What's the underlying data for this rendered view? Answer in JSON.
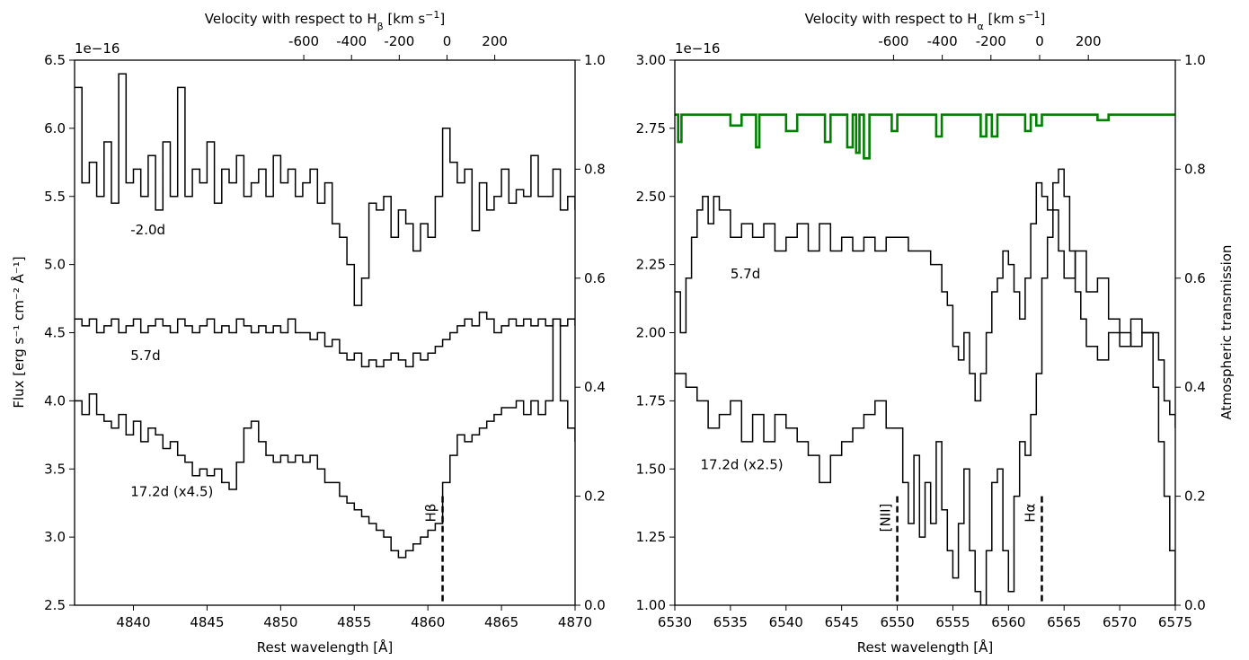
{
  "chart_data": [
    {
      "type": "line",
      "panel": "left",
      "xlabel": "Rest wavelength [Å]",
      "ylabel": "Flux [erg s⁻¹ cm⁻² Å⁻¹]",
      "y_offset_text": "1e−16",
      "xlim": [
        4836,
        4870
      ],
      "ylim": [
        2.5,
        6.5
      ],
      "xticks": [
        4840,
        4845,
        4850,
        4855,
        4860,
        4865,
        4870
      ],
      "xtick_labels": [
        "4840",
        "4845",
        "4850",
        "4855",
        "4860",
        "4865",
        "4870"
      ],
      "yticks": [
        2.5,
        3.0,
        3.5,
        4.0,
        4.5,
        5.0,
        5.5,
        6.0,
        6.5
      ],
      "ytick_labels": [
        "2.5",
        "3.0",
        "3.5",
        "4.0",
        "4.5",
        "5.0",
        "5.5",
        "6.0",
        "6.5"
      ],
      "right_yticks": [
        0.0,
        0.2,
        0.4,
        0.6,
        0.8,
        1.0
      ],
      "right_ytick_labels": [
        "0.0",
        "0.2",
        "0.4",
        "0.6",
        "0.8",
        "1.0"
      ],
      "top_axis_label": "Velocity with respect to H_β [km s⁻¹]",
      "top_axis_label_parts": {
        "pre": "Velocity with respect to H",
        "sub": "β",
        "post": " [km s",
        "sup": "−1",
        "end": "]"
      },
      "top_ticks": [
        -600,
        -400,
        -200,
        0,
        200
      ],
      "top_tick_labels": [
        "-600",
        "-400",
        "-200",
        "0",
        "200"
      ],
      "rest_wavelength": 4861.3,
      "series": [
        {
          "label": "-2.0d",
          "label_pos": [
            4839.8,
            5.22
          ],
          "x": [
            4836.0,
            4836.5,
            4837.0,
            4837.5,
            4838.0,
            4838.5,
            4839.0,
            4839.5,
            4840.0,
            4840.5,
            4841.0,
            4841.5,
            4842.0,
            4842.5,
            4843.0,
            4843.5,
            4844.0,
            4844.5,
            4845.0,
            4845.5,
            4846.0,
            4846.5,
            4847.0,
            4847.5,
            4848.0,
            4848.5,
            4849.0,
            4849.5,
            4850.0,
            4850.5,
            4851.0,
            4851.5,
            4852.0,
            4852.5,
            4853.0,
            4853.5,
            4854.0,
            4854.5,
            4855.0,
            4855.5,
            4856.0,
            4856.5,
            4857.0,
            4857.5,
            4858.0,
            4858.5,
            4859.0,
            4859.5,
            4860.0,
            4860.5,
            4861.0,
            4861.5,
            4862.0,
            4862.5,
            4863.0,
            4863.5,
            4864.0,
            4864.5,
            4865.0,
            4865.5,
            4866.0,
            4866.5,
            4867.0,
            4867.5,
            4868.0,
            4868.5,
            4869.0,
            4869.5,
            4870.0
          ],
          "y": [
            6.3,
            5.6,
            5.75,
            5.5,
            5.9,
            5.45,
            6.4,
            5.6,
            5.7,
            5.5,
            5.8,
            5.4,
            5.9,
            5.5,
            6.3,
            5.5,
            5.7,
            5.6,
            5.9,
            5.45,
            5.7,
            5.6,
            5.8,
            5.5,
            5.6,
            5.7,
            5.5,
            5.8,
            5.6,
            5.7,
            5.5,
            5.6,
            5.7,
            5.45,
            5.6,
            5.3,
            5.2,
            5.0,
            4.7,
            4.9,
            5.45,
            5.4,
            5.5,
            5.2,
            5.4,
            5.3,
            5.1,
            5.3,
            5.2,
            5.5,
            6.0,
            5.75,
            5.6,
            5.7,
            5.25,
            5.6,
            5.4,
            5.5,
            5.7,
            5.45,
            5.55,
            5.5,
            5.8,
            5.5,
            5.5,
            5.7,
            5.4,
            5.5,
            5.4
          ]
        },
        {
          "label": "5.7d",
          "label_pos": [
            4839.8,
            4.3
          ],
          "x": [
            4836.0,
            4836.5,
            4837.0,
            4837.5,
            4838.0,
            4838.5,
            4839.0,
            4839.5,
            4840.0,
            4840.5,
            4841.0,
            4841.5,
            4842.0,
            4842.5,
            4843.0,
            4843.5,
            4844.0,
            4844.5,
            4845.0,
            4845.5,
            4846.0,
            4846.5,
            4847.0,
            4847.5,
            4848.0,
            4848.5,
            4849.0,
            4849.5,
            4850.0,
            4850.5,
            4851.0,
            4851.5,
            4852.0,
            4852.5,
            4853.0,
            4853.5,
            4854.0,
            4854.5,
            4855.0,
            4855.5,
            4856.0,
            4856.5,
            4857.0,
            4857.5,
            4858.0,
            4858.5,
            4859.0,
            4859.5,
            4860.0,
            4860.5,
            4861.0,
            4861.5,
            4862.0,
            4862.5,
            4863.0,
            4863.5,
            4864.0,
            4864.5,
            4865.0,
            4865.5,
            4866.0,
            4866.5,
            4867.0,
            4867.5,
            4868.0,
            4868.5,
            4869.0,
            4869.5,
            4870.0
          ],
          "y": [
            4.6,
            4.55,
            4.6,
            4.5,
            4.55,
            4.6,
            4.5,
            4.55,
            4.6,
            4.5,
            4.55,
            4.6,
            4.55,
            4.5,
            4.6,
            4.55,
            4.5,
            4.55,
            4.6,
            4.5,
            4.55,
            4.5,
            4.6,
            4.55,
            4.5,
            4.55,
            4.5,
            4.55,
            4.5,
            4.6,
            4.5,
            4.5,
            4.45,
            4.5,
            4.4,
            4.45,
            4.35,
            4.3,
            4.35,
            4.25,
            4.3,
            4.25,
            4.3,
            4.35,
            4.3,
            4.25,
            4.35,
            4.3,
            4.35,
            4.4,
            4.45,
            4.5,
            4.55,
            4.6,
            4.55,
            4.65,
            4.6,
            4.5,
            4.55,
            4.6,
            4.55,
            4.6,
            4.55,
            4.6,
            4.55,
            4.6,
            4.55,
            4.6,
            4.55
          ]
        },
        {
          "label": "17.2d (x4.5)",
          "label_pos": [
            4839.8,
            3.3
          ],
          "x": [
            4836.0,
            4836.5,
            4837.0,
            4837.5,
            4838.0,
            4838.5,
            4839.0,
            4839.5,
            4840.0,
            4840.5,
            4841.0,
            4841.5,
            4842.0,
            4842.5,
            4843.0,
            4843.5,
            4844.0,
            4844.5,
            4845.0,
            4845.5,
            4846.0,
            4846.5,
            4847.0,
            4847.5,
            4848.0,
            4848.5,
            4849.0,
            4849.5,
            4850.0,
            4850.5,
            4851.0,
            4851.5,
            4852.0,
            4852.5,
            4853.0,
            4853.5,
            4854.0,
            4854.5,
            4855.0,
            4855.5,
            4856.0,
            4856.5,
            4857.0,
            4857.5,
            4858.0,
            4858.5,
            4859.0,
            4859.5,
            4860.0,
            4860.5,
            4861.0,
            4861.5,
            4862.0,
            4862.5,
            4863.0,
            4863.5,
            4864.0,
            4864.5,
            4865.0,
            4865.5,
            4866.0,
            4866.5,
            4867.0,
            4867.5,
            4868.0,
            4868.5,
            4869.0,
            4869.5,
            4870.0
          ],
          "y": [
            4.0,
            3.9,
            4.05,
            3.9,
            3.85,
            3.8,
            3.9,
            3.75,
            3.85,
            3.7,
            3.8,
            3.75,
            3.65,
            3.7,
            3.6,
            3.55,
            3.45,
            3.5,
            3.45,
            3.5,
            3.4,
            3.35,
            3.55,
            3.8,
            3.85,
            3.7,
            3.6,
            3.55,
            3.6,
            3.55,
            3.6,
            3.55,
            3.6,
            3.5,
            3.4,
            3.4,
            3.3,
            3.25,
            3.2,
            3.15,
            3.1,
            3.05,
            3.0,
            2.9,
            2.85,
            2.9,
            2.95,
            3.0,
            3.05,
            3.1,
            3.4,
            3.6,
            3.75,
            3.7,
            3.75,
            3.8,
            3.85,
            3.9,
            3.95,
            3.95,
            4.0,
            3.9,
            4.0,
            3.9,
            4.0,
            4.6,
            4.0,
            3.8,
            3.7
          ]
        }
      ],
      "line_markers": [
        {
          "label": "Hβ",
          "x": 4861.0,
          "y_top": 3.3
        }
      ]
    },
    {
      "type": "line",
      "panel": "right",
      "xlabel": "Rest wavelength [Å]",
      "ylabel": "Atmospheric transmission",
      "y_offset_text": "1e−16",
      "xlim": [
        6530,
        6575
      ],
      "ylim": [
        1.0,
        3.0
      ],
      "xticks": [
        6530,
        6535,
        6540,
        6545,
        6550,
        6555,
        6560,
        6565,
        6570,
        6575
      ],
      "xtick_labels": [
        "6530",
        "6535",
        "6540",
        "6545",
        "6550",
        "6555",
        "6560",
        "6565",
        "6570",
        "6575"
      ],
      "yticks": [
        1.0,
        1.25,
        1.5,
        1.75,
        2.0,
        2.25,
        2.5,
        2.75,
        3.0
      ],
      "ytick_labels": [
        "1.00",
        "1.25",
        "1.50",
        "1.75",
        "2.00",
        "2.25",
        "2.50",
        "2.75",
        "3.00"
      ],
      "right_yticks": [
        0.0,
        0.2,
        0.4,
        0.6,
        0.8,
        1.0
      ],
      "right_ytick_labels": [
        "0.0",
        "0.2",
        "0.4",
        "0.6",
        "0.8",
        "1.0"
      ],
      "top_axis_label": "Velocity with respect to H_α [km s⁻¹]",
      "top_axis_label_parts": {
        "pre": "Velocity with respect to H",
        "sub": "α",
        "post": " [km s",
        "sup": "−1",
        "end": "]"
      },
      "top_ticks": [
        -600,
        -400,
        -200,
        0,
        200
      ],
      "top_tick_labels": [
        "-600",
        "-400",
        "-200",
        "0",
        "200"
      ],
      "rest_wavelength": 6562.8,
      "series": [
        {
          "label": "5.7d",
          "label_pos": [
            6535.0,
            2.2
          ],
          "x": [
            6530.0,
            6530.5,
            6531.0,
            6531.5,
            6532.0,
            6532.5,
            6533.0,
            6533.5,
            6534.0,
            6535.0,
            6536.0,
            6537.0,
            6538.0,
            6539.0,
            6540.0,
            6541.0,
            6542.0,
            6543.0,
            6544.0,
            6545.0,
            6546.0,
            6547.0,
            6548.0,
            6549.0,
            6550.0,
            6551.0,
            6552.0,
            6553.0,
            6554.0,
            6554.5,
            6555.0,
            6555.5,
            6556.0,
            6556.5,
            6557.0,
            6557.5,
            6558.0,
            6558.5,
            6559.0,
            6559.5,
            6560.0,
            6560.5,
            6561.0,
            6561.5,
            6562.0,
            6562.5,
            6563.0,
            6563.5,
            6564.0,
            6564.5,
            6565.0,
            6565.5,
            6566.0,
            6566.5,
            6567.0,
            6568.0,
            6569.0,
            6570.0,
            6571.0,
            6572.0,
            6573.0,
            6573.5,
            6574.0,
            6574.5,
            6575.0
          ],
          "y": [
            2.15,
            2.0,
            2.2,
            2.35,
            2.45,
            2.5,
            2.4,
            2.5,
            2.45,
            2.35,
            2.4,
            2.35,
            2.4,
            2.3,
            2.35,
            2.4,
            2.3,
            2.4,
            2.3,
            2.35,
            2.3,
            2.35,
            2.3,
            2.35,
            2.35,
            2.3,
            2.3,
            2.25,
            2.15,
            2.1,
            1.95,
            1.9,
            2.0,
            1.85,
            1.75,
            1.85,
            2.0,
            2.15,
            2.2,
            2.3,
            2.25,
            2.15,
            2.05,
            2.2,
            2.4,
            2.55,
            2.5,
            2.45,
            2.55,
            2.6,
            2.5,
            2.3,
            2.15,
            2.05,
            1.95,
            1.9,
            2.0,
            1.95,
            2.05,
            2.0,
            2.0,
            1.9,
            1.75,
            1.7,
            1.65
          ]
        },
        {
          "label": "17.2d (x2.5)",
          "label_pos": [
            6532.3,
            1.5
          ],
          "x": [
            6530.0,
            6531.0,
            6532.0,
            6533.0,
            6534.0,
            6535.0,
            6536.0,
            6537.0,
            6538.0,
            6539.0,
            6540.0,
            6541.0,
            6542.0,
            6543.0,
            6544.0,
            6545.0,
            6546.0,
            6547.0,
            6548.0,
            6549.0,
            6550.0,
            6550.5,
            6551.0,
            6551.5,
            6552.0,
            6552.5,
            6553.0,
            6553.5,
            6554.0,
            6554.5,
            6555.0,
            6555.5,
            6556.0,
            6556.5,
            6557.0,
            6557.5,
            6558.0,
            6558.5,
            6559.0,
            6559.5,
            6560.0,
            6560.5,
            6561.0,
            6561.5,
            6562.0,
            6562.5,
            6563.0,
            6563.5,
            6564.0,
            6564.5,
            6565.0,
            6566.0,
            6567.0,
            6568.0,
            6569.0,
            6570.0,
            6571.0,
            6572.0,
            6573.0,
            6573.5,
            6574.0,
            6574.5,
            6575.0
          ],
          "y": [
            1.85,
            1.8,
            1.75,
            1.65,
            1.7,
            1.75,
            1.6,
            1.7,
            1.6,
            1.7,
            1.65,
            1.6,
            1.55,
            1.45,
            1.55,
            1.6,
            1.65,
            1.7,
            1.75,
            1.65,
            1.65,
            1.45,
            1.3,
            1.55,
            1.25,
            1.45,
            1.3,
            1.6,
            1.35,
            1.2,
            1.1,
            1.3,
            1.5,
            1.2,
            1.05,
            1.0,
            1.2,
            1.45,
            1.5,
            1.2,
            1.05,
            1.4,
            1.6,
            1.55,
            1.7,
            1.85,
            2.2,
            2.35,
            2.45,
            2.3,
            2.2,
            2.3,
            2.15,
            2.2,
            2.05,
            2.0,
            1.95,
            2.0,
            1.8,
            1.6,
            1.4,
            1.2,
            1.0
          ]
        },
        {
          "label": "",
          "role": "atmospheric transmission",
          "axis": "right",
          "color": "#008000",
          "x": [
            6530.0,
            6530.3,
            6530.6,
            6531.0,
            6532.0,
            6533.0,
            6534.0,
            6535.0,
            6536.0,
            6537.0,
            6537.3,
            6537.6,
            6538.0,
            6539.0,
            6540.0,
            6541.0,
            6542.0,
            6543.0,
            6543.5,
            6544.0,
            6545.0,
            6545.5,
            6546.0,
            6546.3,
            6546.6,
            6547.0,
            6547.5,
            6548.0,
            6549.0,
            6549.5,
            6550.0,
            6551.0,
            6552.0,
            6553.0,
            6553.5,
            6554.0,
            6555.0,
            6556.0,
            6557.0,
            6557.5,
            6558.0,
            6558.5,
            6559.0,
            6560.0,
            6561.0,
            6561.5,
            6562.0,
            6562.5,
            6563.0,
            6564.0,
            6565.0,
            6566.0,
            6567.0,
            6568.0,
            6569.0,
            6570.0,
            6571.0,
            6572.0,
            6573.0,
            6574.0,
            6575.0
          ],
          "y": [
            0.9,
            0.85,
            0.9,
            0.9,
            0.9,
            0.9,
            0.9,
            0.88,
            0.9,
            0.9,
            0.84,
            0.9,
            0.9,
            0.9,
            0.87,
            0.9,
            0.9,
            0.9,
            0.85,
            0.9,
            0.9,
            0.84,
            0.9,
            0.83,
            0.9,
            0.82,
            0.9,
            0.9,
            0.9,
            0.87,
            0.9,
            0.9,
            0.9,
            0.9,
            0.86,
            0.9,
            0.9,
            0.9,
            0.9,
            0.86,
            0.9,
            0.86,
            0.9,
            0.9,
            0.9,
            0.87,
            0.9,
            0.88,
            0.9,
            0.9,
            0.9,
            0.9,
            0.9,
            0.89,
            0.9,
            0.9,
            0.9,
            0.9,
            0.9,
            0.9,
            0.9
          ]
        }
      ],
      "line_markers": [
        {
          "label": "[NII]",
          "x": 6550.0,
          "y_top": 1.4
        },
        {
          "label": "Hα",
          "x": 6563.0,
          "y_top": 1.4
        }
      ]
    }
  ]
}
